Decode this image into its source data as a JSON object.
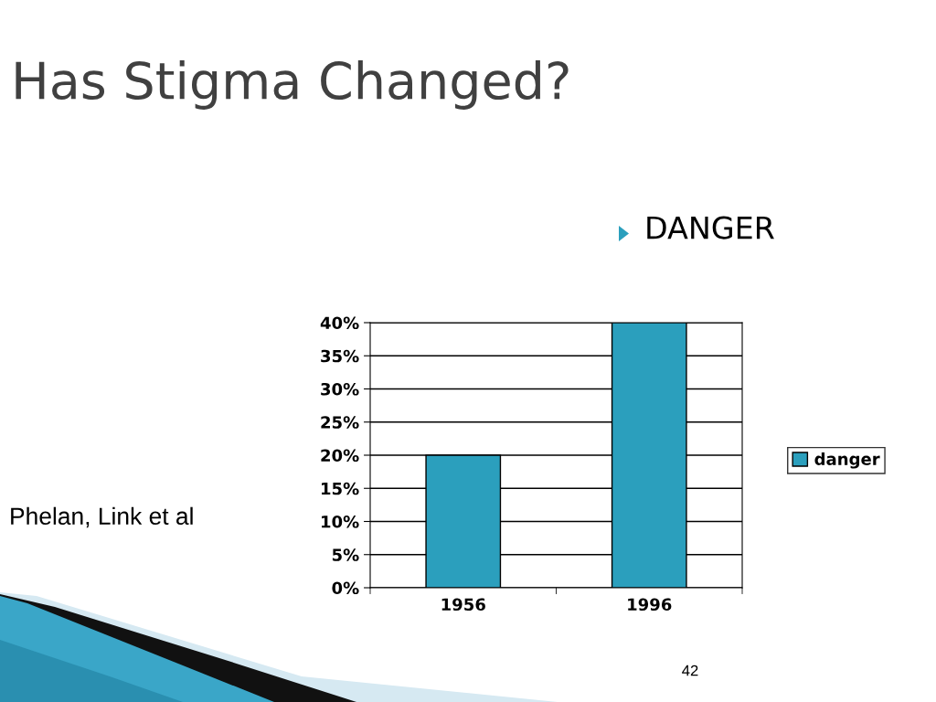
{
  "chart_data": {
    "type": "bar",
    "title": "Has Stigma Changed?",
    "subtitle": "DANGER",
    "annotations": [
      "Phelan, Link et al",
      "42"
    ],
    "categories": [
      "1956",
      "1996"
    ],
    "series": [
      {
        "name": "danger",
        "color": "#2b9fbd",
        "values": [
          20,
          40
        ]
      }
    ],
    "ylim": [
      0,
      40
    ],
    "yticks": [
      {
        "value": 0,
        "label": "0%"
      },
      {
        "value": 5,
        "label": "5%"
      },
      {
        "value": 10,
        "label": "10%"
      },
      {
        "value": 15,
        "label": "15%"
      },
      {
        "value": 20,
        "label": "20%"
      },
      {
        "value": 25,
        "label": "25%"
      },
      {
        "value": 30,
        "label": "30%"
      },
      {
        "value": 35,
        "label": "35%"
      },
      {
        "value": 40,
        "label": "40%"
      }
    ],
    "grid": "y",
    "legend": "right"
  }
}
